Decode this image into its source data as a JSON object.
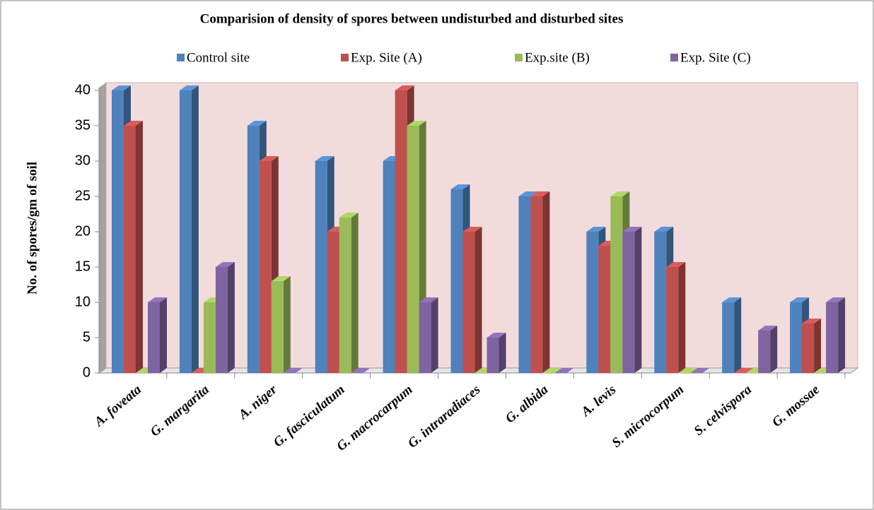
{
  "chart_data": {
    "type": "bar3d",
    "title": "Comparision of density of spores between undisturbed and disturbed sites",
    "y_label": "No. of spores/gm of soil",
    "categories": [
      "A. foveata",
      "G. margarita",
      "A. niger",
      "G. fasciculatum",
      "G. macrocarpum",
      "G. intraradiaces",
      "G. albida",
      "A. levis",
      "S. microcorpum",
      "S. celvispora",
      "G. mossae"
    ],
    "series": [
      {
        "name": "Control site",
        "color": "#4f81bd",
        "values": [
          40,
          40,
          35,
          30,
          30,
          26,
          25,
          20,
          20,
          10,
          10
        ]
      },
      {
        "name": "Exp. Site (A)",
        "color": "#c0504d",
        "values": [
          35,
          0,
          30,
          20,
          40,
          20,
          25,
          18,
          15,
          0,
          7
        ]
      },
      {
        "name": "Exp.site (B)",
        "color": "#9bbb59",
        "values": [
          0,
          10,
          13,
          22,
          35,
          0,
          0,
          25,
          0,
          0,
          0
        ]
      },
      {
        "name": "Exp. Site (C)",
        "color": "#8064a2",
        "values": [
          10,
          15,
          0,
          0,
          10,
          5,
          0,
          20,
          0,
          6,
          10
        ]
      }
    ],
    "ylim": [
      0,
      40
    ],
    "yticks": [
      0,
      5,
      10,
      15,
      20,
      25,
      30,
      35,
      40
    ],
    "wall_color": "#f2dcdb",
    "legend": "top"
  }
}
